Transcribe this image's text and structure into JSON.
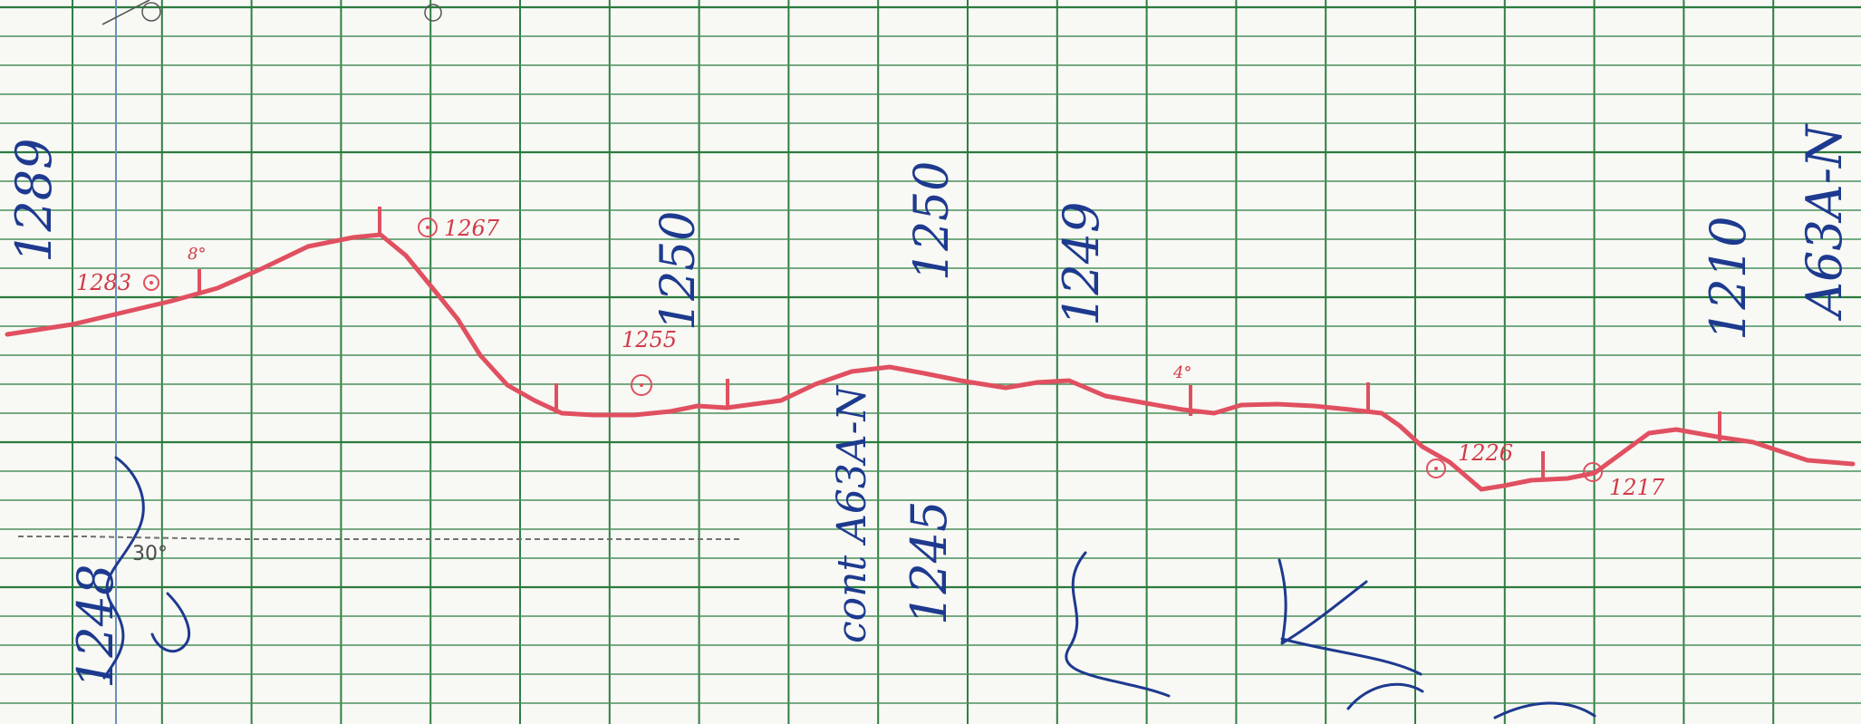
{
  "profile": {
    "left_elevation": "1283",
    "mid_elevation": "1255",
    "peak_elevation": "1267",
    "right_elevation_1": "1226",
    "right_elevation_2": "1217",
    "angle_label_1": "8°",
    "angle_label_2": "4°",
    "gray_label": "30°"
  },
  "blue_labels": {
    "left_vertical": "1289",
    "left_bottom": "1248",
    "mid_a": "1250",
    "mid_b": "1250",
    "mid_c": "cont A63A-N",
    "mid_d": "1245",
    "mid_e": "1249",
    "right_a": "1210",
    "right_b": "A63A-N"
  },
  "colors": {
    "paper": "#f8f8f4",
    "grid": "#2f7f43",
    "profile": "#e05060",
    "blue_ink": "#1d3a8f",
    "pencil": "#4c4c4c"
  }
}
